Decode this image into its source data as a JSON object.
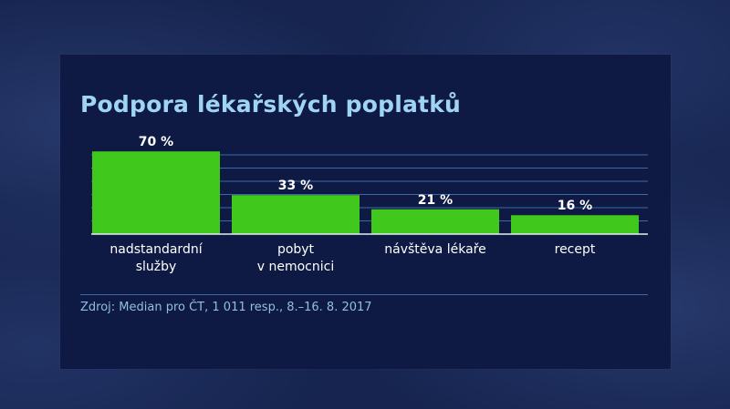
{
  "title": "Podpora lékařských poplatků",
  "source": "Zdroj: Median pro ČT, 1 011 resp., 8.–16. 8. 2017",
  "colors": {
    "bar": "#41c81d",
    "grid": "#3c6aa6",
    "baseline": "#e8eef8",
    "value_label": "#ffffff",
    "category_label": "#ffffff"
  },
  "chart_data": {
    "type": "bar",
    "categories": [
      [
        "nadstandardní",
        "služby"
      ],
      [
        "pobyt",
        "v nemocnici"
      ],
      [
        "návštěva lékaře"
      ],
      [
        "recept"
      ]
    ],
    "values": [
      70,
      33,
      21,
      16
    ],
    "value_labels": [
      "70 %",
      "33 %",
      "21 %",
      "16 %"
    ],
    "unit": "%",
    "ylim": [
      0,
      80
    ],
    "grid": true,
    "legend": "none"
  }
}
